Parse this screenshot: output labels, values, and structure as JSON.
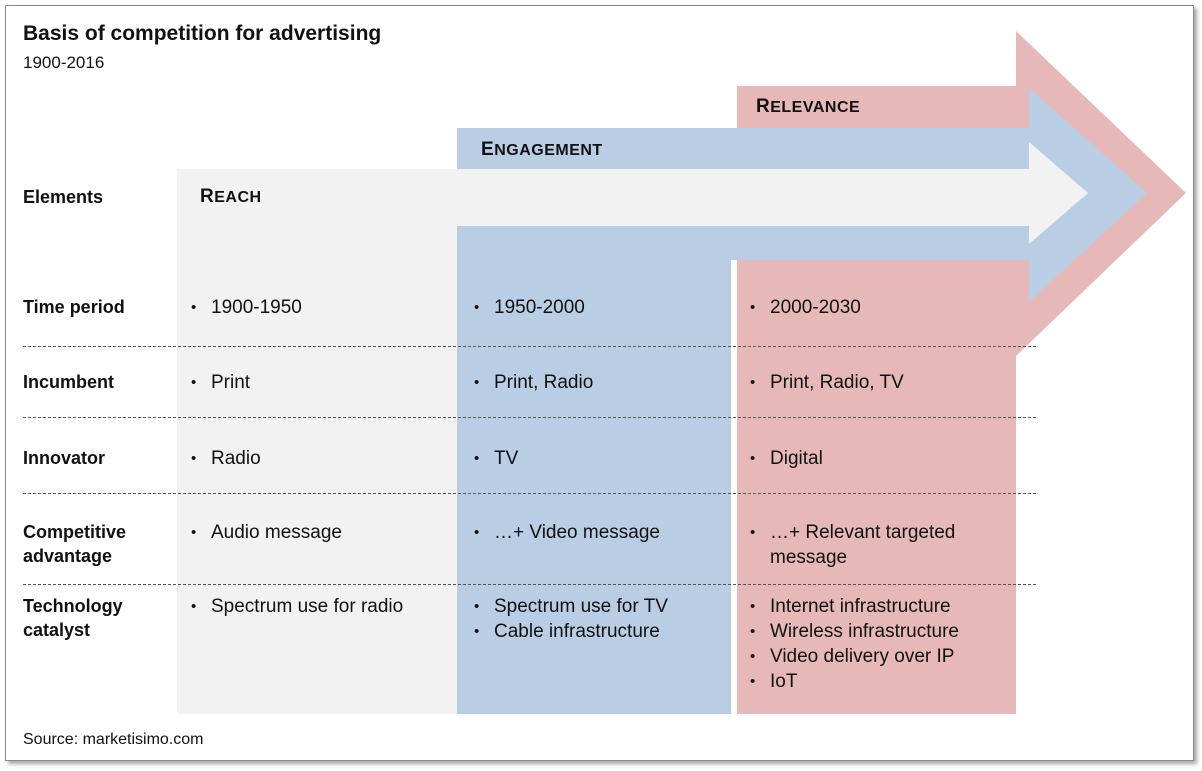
{
  "title": "Basis of competition for advertising",
  "subtitle": "1900-2016",
  "source": "Source: marketisimo.com",
  "colors": {
    "reach": "#f2f2f2",
    "engagement": "#b9cde5",
    "relevance": "#e6b9b8"
  },
  "column_headers": [
    {
      "cap": "R",
      "rest": "EACH"
    },
    {
      "cap": "E",
      "rest": "NGAGEMENT"
    },
    {
      "cap": "R",
      "rest": "ELEVANCE"
    }
  ],
  "rows": [
    {
      "label": [
        "Elements"
      ]
    },
    {
      "label": [
        "Time period"
      ],
      "cells": [
        [
          "1900-1950"
        ],
        [
          "1950-2000"
        ],
        [
          "2000-2030"
        ]
      ]
    },
    {
      "label": [
        "Incumbent"
      ],
      "cells": [
        [
          "Print"
        ],
        [
          "Print, Radio"
        ],
        [
          "Print, Radio, TV"
        ]
      ]
    },
    {
      "label": [
        "Innovator"
      ],
      "cells": [
        [
          "Radio"
        ],
        [
          "TV"
        ],
        [
          "Digital"
        ]
      ]
    },
    {
      "label": [
        "Competitive",
        "advantage"
      ],
      "cells": [
        [
          "Audio message"
        ],
        [
          "…+ Video message"
        ],
        [
          "…+ Relevant targeted message"
        ]
      ]
    },
    {
      "label": [
        "Technology",
        "catalyst"
      ],
      "cells": [
        [
          "Spectrum use for radio"
        ],
        [
          "Spectrum use for TV",
          "Cable infrastructure"
        ],
        [
          "Internet infrastructure",
          "Wireless infrastructure",
          "Video delivery over IP",
          "IoT"
        ]
      ]
    }
  ]
}
